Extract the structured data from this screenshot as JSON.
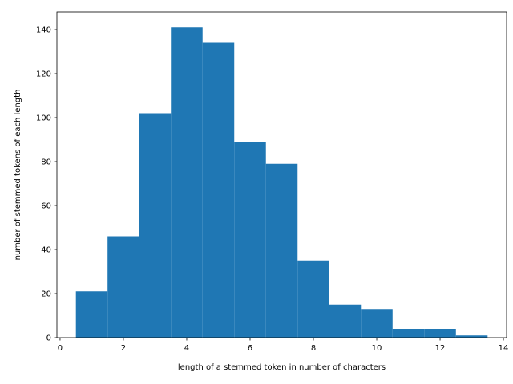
{
  "chart_data": {
    "type": "bar",
    "xlabel": "length of a stemmed token in number of characters",
    "ylabel": "number of stemmed tokens of each length",
    "bin_width": 1,
    "bins": [
      {
        "x": 1,
        "count": 21
      },
      {
        "x": 2,
        "count": 46
      },
      {
        "x": 3,
        "count": 102
      },
      {
        "x": 4,
        "count": 141
      },
      {
        "x": 5,
        "count": 134
      },
      {
        "x": 6,
        "count": 89
      },
      {
        "x": 7,
        "count": 79
      },
      {
        "x": 8,
        "count": 35
      },
      {
        "x": 9,
        "count": 15
      },
      {
        "x": 10,
        "count": 13
      },
      {
        "x": 11,
        "count": 4
      },
      {
        "x": 12,
        "count": 4
      },
      {
        "x": 13,
        "count": 1
      }
    ],
    "xlim": [
      -0.1,
      14.1
    ],
    "ylim": [
      0,
      148
    ],
    "xticks": [
      0,
      2,
      4,
      6,
      8,
      10,
      12,
      14
    ],
    "yticks": [
      0,
      20,
      40,
      60,
      80,
      100,
      120,
      140
    ],
    "bar_color": "#1f77b4",
    "grid": false,
    "legend": "none"
  }
}
